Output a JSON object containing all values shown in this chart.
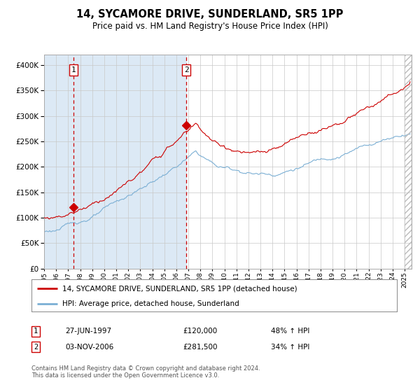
{
  "title": "14, SYCAMORE DRIVE, SUNDERLAND, SR5 1PP",
  "subtitle": "Price paid vs. HM Land Registry's House Price Index (HPI)",
  "legend_line1": "14, SYCAMORE DRIVE, SUNDERLAND, SR5 1PP (detached house)",
  "legend_line2": "HPI: Average price, detached house, Sunderland",
  "sale1_date": "27-JUN-1997",
  "sale1_price": 120000,
  "sale1_label": "48% ↑ HPI",
  "sale2_date": "03-NOV-2006",
  "sale2_price": 281500,
  "sale2_label": "34% ↑ HPI",
  "footer": "Contains HM Land Registry data © Crown copyright and database right 2024.\nThis data is licensed under the Open Government Licence v3.0.",
  "hpi_color": "#7bafd4",
  "price_color": "#cc0000",
  "bg_shaded": "#dce9f5",
  "vline_color": "#cc0000",
  "ylim": [
    0,
    420000
  ],
  "yticks": [
    0,
    50000,
    100000,
    150000,
    200000,
    250000,
    300000,
    350000,
    400000
  ],
  "sale1_t": 1997.458,
  "sale2_t": 2006.833
}
